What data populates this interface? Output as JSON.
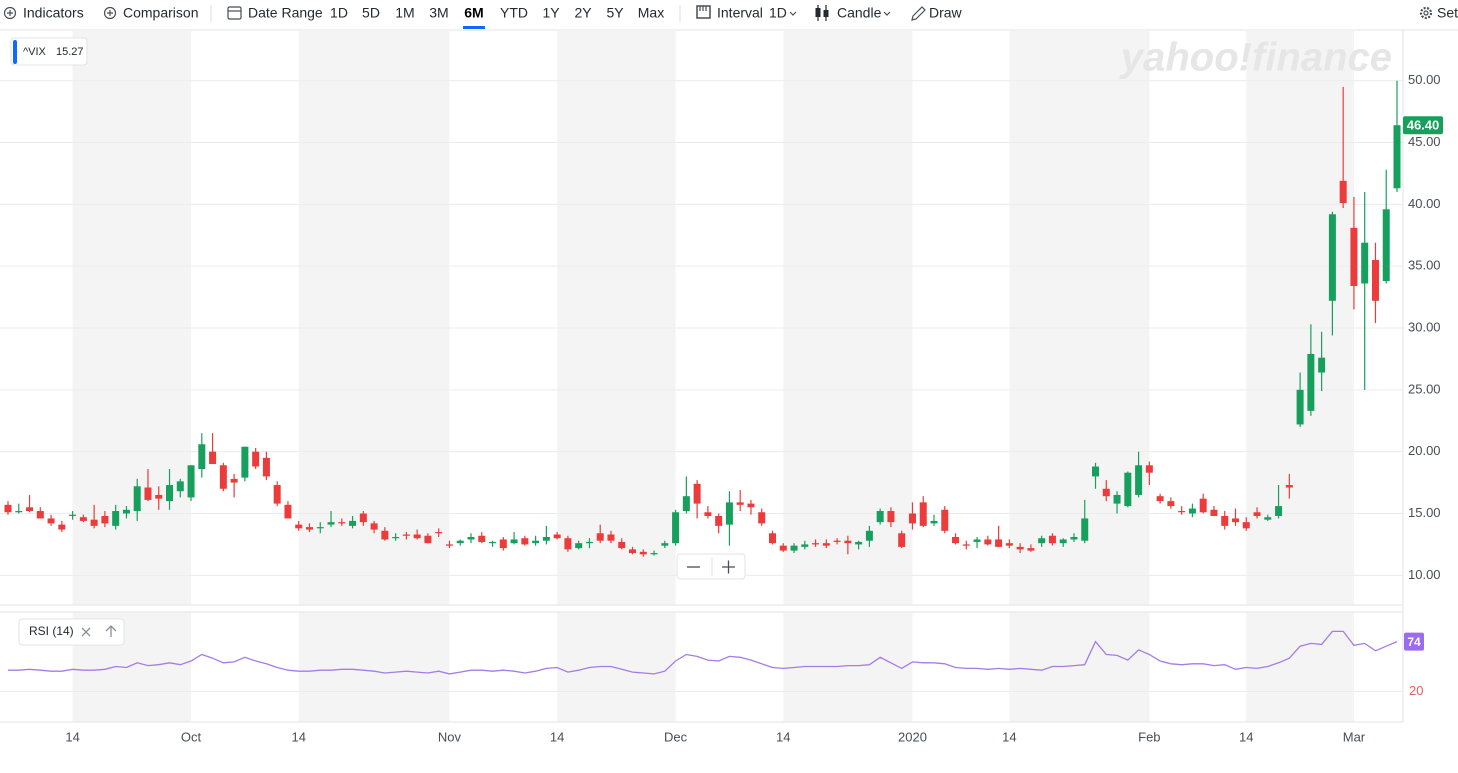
{
  "toolbar": {
    "indicators": "Indicators",
    "comparison": "Comparison",
    "date_range": "Date Range",
    "ranges": [
      "1D",
      "5D",
      "1M",
      "3M",
      "6M",
      "YTD",
      "1Y",
      "2Y",
      "5Y",
      "Max"
    ],
    "active_range": "6M",
    "interval": "Interval",
    "interval_value": "1D",
    "chart_style": "Candle",
    "draw": "Draw",
    "settings": "Set"
  },
  "watermark": "yahoo!finance",
  "chart_data": [
    {
      "type": "candlestick",
      "legend": {
        "symbol": "^VIX",
        "price": "15.27"
      },
      "up_color": "#17a05d",
      "down_color": "#eb3b3b",
      "grid": true,
      "categories": [
        null,
        null,
        null,
        null,
        null,
        null,
        "14",
        null,
        null,
        null,
        null,
        null,
        null,
        null,
        null,
        null,
        null,
        "Oct",
        null,
        null,
        null,
        null,
        null,
        null,
        null,
        null,
        null,
        "14",
        null,
        null,
        null,
        null,
        null,
        null,
        null,
        null,
        null,
        null,
        null,
        null,
        null,
        "Nov",
        null,
        null,
        null,
        null,
        null,
        null,
        null,
        null,
        null,
        "14",
        null,
        null,
        null,
        null,
        null,
        null,
        null,
        null,
        null,
        null,
        "Dec",
        null,
        null,
        null,
        null,
        null,
        null,
        null,
        null,
        null,
        "14",
        null,
        null,
        null,
        null,
        null,
        null,
        null,
        null,
        null,
        null,
        null,
        "2020",
        null,
        null,
        null,
        null,
        null,
        null,
        null,
        null,
        "14",
        null,
        null,
        null,
        null,
        null,
        null,
        null,
        null,
        null,
        null,
        null,
        null,
        "Feb",
        null,
        null,
        null,
        null,
        null,
        null,
        null,
        null,
        "14",
        null,
        null,
        null,
        null,
        null,
        null,
        null,
        null,
        null,
        "Mar",
        null,
        null,
        null,
        null
      ],
      "open": [
        15.7,
        15.1,
        15.5,
        15.2,
        14.6,
        14.1,
        14.8,
        14.7,
        14.5,
        14.8,
        14.0,
        15.0,
        15.2,
        17.1,
        16.5,
        16.0,
        16.8,
        16.3,
        18.6,
        20.0,
        18.9,
        17.8,
        17.9,
        20.0,
        19.5,
        17.3,
        15.7,
        14.1,
        13.9,
        13.8,
        14.1,
        14.3,
        14.0,
        15.0,
        14.2,
        13.6,
        13.0,
        13.3,
        13.3,
        13.2,
        13.5,
        12.5,
        12.6,
        12.9,
        13.2,
        12.6,
        12.9,
        12.6,
        13.0,
        12.6,
        12.8,
        13.3,
        13.0,
        12.2,
        12.6,
        13.4,
        13.3,
        12.7,
        12.1,
        11.9,
        11.7,
        12.4,
        12.6,
        15.2,
        17.4,
        15.1,
        14.8,
        14.1,
        15.9,
        15.8,
        15.1,
        13.4,
        12.4,
        12.0,
        12.3,
        12.6,
        12.6,
        12.8,
        12.8,
        12.5,
        12.8,
        14.3,
        15.2,
        13.4,
        15.0,
        15.9,
        14.2,
        15.3,
        13.1,
        12.5,
        12.7,
        12.9,
        12.9,
        12.6,
        12.3,
        12.2,
        12.6,
        13.2,
        12.6,
        12.9,
        12.8,
        18.0,
        17.0,
        15.8,
        15.6,
        16.5,
        18.9,
        16.4,
        16.0,
        15.2,
        15.0,
        16.2,
        15.3,
        14.8,
        14.6,
        14.3,
        15.1,
        14.5,
        14.8,
        17.3,
        22.2,
        23.3,
        26.4,
        32.2,
        41.9,
        38.1,
        33.6,
        35.5,
        33.8,
        41.3
      ],
      "high": [
        16.0,
        15.8,
        16.5,
        15.5,
        14.9,
        14.4,
        15.2,
        14.9,
        15.7,
        15.2,
        15.7,
        15.6,
        17.8,
        18.6,
        17.2,
        18.6,
        17.8,
        18.9,
        21.5,
        21.5,
        19.1,
        18.2,
        20.4,
        20.3,
        20.0,
        17.6,
        16.0,
        14.4,
        14.2,
        14.3,
        15.2,
        14.6,
        14.8,
        15.2,
        14.4,
        13.9,
        13.4,
        13.5,
        13.7,
        13.4,
        13.8,
        12.8,
        12.9,
        13.4,
        13.5,
        12.8,
        13.1,
        13.5,
        13.2,
        13.2,
        14.0,
        13.5,
        13.2,
        12.8,
        13.0,
        14.1,
        13.6,
        13.0,
        12.3,
        12.1,
        12.0,
        12.8,
        15.3,
        18.0,
        17.7,
        15.6,
        15.0,
        16.8,
        16.9,
        16.1,
        15.4,
        13.6,
        12.6,
        12.6,
        12.8,
        12.9,
        12.9,
        13.0,
        13.2,
        12.8,
        14.0,
        15.4,
        15.5,
        13.6,
        15.9,
        16.4,
        14.9,
        15.6,
        13.4,
        12.8,
        13.1,
        13.2,
        14.0,
        12.9,
        12.6,
        12.5,
        13.2,
        13.4,
        13.0,
        13.4,
        16.1,
        19.1,
        17.7,
        16.8,
        18.4,
        20.0,
        19.2,
        16.6,
        16.3,
        15.6,
        15.8,
        16.6,
        15.6,
        15.2,
        15.4,
        14.7,
        15.5,
        14.9,
        17.3,
        18.2,
        26.4,
        30.3,
        29.7,
        39.4,
        49.5,
        40.6,
        41.0,
        36.9,
        42.8,
        50.0
      ],
      "low": [
        14.9,
        15.0,
        15.1,
        14.6,
        14.0,
        13.5,
        14.5,
        14.3,
        13.8,
        13.9,
        13.7,
        14.6,
        14.4,
        16.0,
        15.3,
        15.3,
        16.3,
        16.0,
        17.9,
        19.4,
        16.8,
        16.3,
        17.6,
        18.6,
        17.7,
        15.6,
        14.6,
        13.6,
        13.5,
        13.4,
        13.9,
        14.0,
        13.8,
        14.0,
        13.4,
        12.8,
        12.8,
        12.9,
        12.9,
        12.6,
        13.1,
        12.2,
        12.4,
        12.6,
        12.6,
        12.3,
        12.0,
        12.5,
        12.4,
        12.4,
        12.5,
        12.9,
        11.9,
        12.1,
        12.2,
        12.6,
        12.6,
        12.1,
        11.7,
        11.5,
        11.6,
        12.2,
        12.4,
        15.0,
        14.6,
        14.6,
        13.4,
        12.4,
        15.2,
        14.9,
        14.0,
        12.5,
        11.9,
        11.8,
        12.1,
        12.3,
        12.2,
        12.5,
        11.7,
        12.1,
        12.3,
        14.1,
        13.9,
        12.2,
        13.7,
        13.9,
        14.0,
        13.4,
        12.5,
        12.1,
        12.2,
        12.4,
        12.3,
        12.2,
        11.8,
        11.9,
        12.3,
        12.4,
        12.3,
        12.7,
        12.6,
        17.0,
        16.0,
        15.0,
        15.5,
        16.3,
        17.3,
        15.8,
        15.4,
        14.9,
        14.7,
        15.0,
        14.8,
        13.7,
        14.0,
        13.6,
        14.6,
        14.4,
        14.6,
        16.2,
        22.0,
        22.9,
        24.9,
        29.4,
        39.7,
        31.5,
        25.0,
        30.4,
        33.6,
        41.0
      ],
      "close": [
        15.1,
        15.2,
        15.2,
        14.6,
        14.2,
        13.7,
        14.9,
        14.4,
        14.0,
        14.2,
        15.2,
        15.3,
        17.2,
        16.1,
        16.2,
        17.3,
        17.6,
        18.9,
        20.6,
        19.0,
        17.0,
        17.5,
        20.4,
        18.8,
        18.0,
        15.8,
        14.6,
        13.8,
        13.7,
        13.9,
        14.3,
        14.2,
        14.4,
        14.3,
        13.7,
        12.9,
        13.1,
        13.2,
        13.0,
        12.6,
        13.4,
        12.4,
        12.8,
        13.1,
        12.7,
        12.7,
        12.2,
        12.9,
        12.5,
        12.8,
        13.1,
        13.0,
        12.1,
        12.6,
        12.7,
        12.8,
        12.8,
        12.2,
        11.8,
        11.7,
        11.8,
        12.6,
        15.1,
        16.4,
        15.8,
        14.8,
        14.0,
        15.9,
        15.7,
        15.5,
        14.2,
        12.6,
        12.0,
        12.4,
        12.5,
        12.5,
        12.4,
        12.7,
        12.6,
        12.7,
        13.6,
        15.2,
        14.3,
        12.3,
        14.2,
        14.0,
        14.4,
        13.6,
        12.6,
        12.4,
        12.9,
        12.5,
        12.3,
        12.4,
        12.1,
        12.0,
        13.0,
        12.6,
        12.9,
        13.1,
        14.6,
        18.8,
        16.4,
        16.5,
        18.3,
        18.9,
        18.3,
        16.0,
        15.6,
        15.1,
        15.4,
        15.1,
        14.8,
        14.0,
        14.3,
        13.8,
        14.8,
        14.7,
        15.6,
        17.1,
        25.0,
        27.9,
        27.6,
        39.2,
        40.1,
        33.4,
        36.9,
        32.2,
        39.6,
        46.4
      ],
      "last_close_label": "46.40",
      "ylim": [
        7.6,
        54.1
      ],
      "yticks": [
        {
          "value": 10,
          "label": "10.00"
        },
        {
          "value": 15,
          "label": "15.00"
        },
        {
          "value": 20,
          "label": "20.00"
        },
        {
          "value": 25,
          "label": "25.00"
        },
        {
          "value": 30,
          "label": "30.00"
        },
        {
          "value": 35,
          "label": "35.00"
        },
        {
          "value": 40,
          "label": "40.00"
        },
        {
          "value": 45,
          "label": "45.00"
        },
        {
          "value": 50,
          "label": "50.00"
        }
      ]
    },
    {
      "type": "line",
      "title": "RSI (14)",
      "color": "#a57be8",
      "label_color": "#9b6cf0",
      "tick_color": "#e0625c",
      "values": [
        43,
        43,
        44,
        43,
        42,
        42,
        44,
        43,
        43,
        44,
        47,
        46,
        51,
        48,
        49,
        51,
        49,
        53,
        60,
        56,
        51,
        52,
        57,
        53,
        50,
        46,
        43,
        42,
        42,
        43,
        43,
        44,
        44,
        43,
        42,
        40,
        41,
        42,
        41,
        40,
        42,
        39,
        41,
        43,
        43,
        42,
        43,
        42,
        40,
        42,
        45,
        46,
        41,
        43,
        46,
        47,
        47,
        44,
        41,
        40,
        39,
        42,
        53,
        60,
        58,
        54,
        53,
        58,
        57,
        54,
        50,
        46,
        45,
        46,
        47,
        47,
        47,
        47,
        48,
        48,
        49,
        57,
        51,
        45,
        52,
        51,
        51,
        50,
        46,
        45,
        45,
        44,
        45,
        44,
        45,
        44,
        43,
        47,
        47,
        48,
        49,
        74,
        60,
        59,
        54,
        65,
        60,
        53,
        50,
        49,
        50,
        50,
        48,
        49,
        44,
        46,
        45,
        47,
        51,
        56,
        69,
        72,
        71,
        85,
        85,
        70,
        72,
        64,
        69,
        74
      ],
      "ylim": [
        -13,
        106
      ],
      "yticks": [
        20
      ]
    }
  ]
}
